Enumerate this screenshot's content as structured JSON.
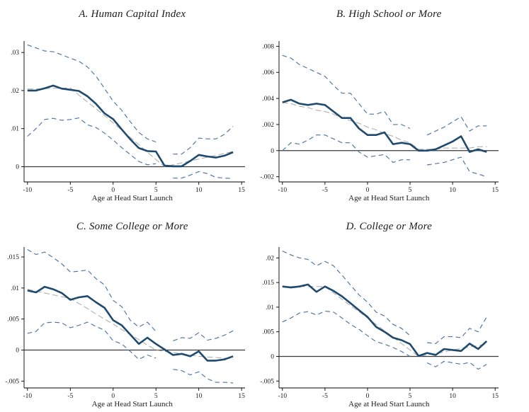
{
  "colors": {
    "main_line": "#1f4a6e",
    "ci_line": "#4d74a3",
    "trend_line": "#a8a8a8",
    "zero_line": "#3a3a3a",
    "axis": "#000000",
    "text": "#1c1c1c",
    "background": "#ffffff"
  },
  "chart_data": [
    {
      "id": "A",
      "type": "line",
      "title": "A. Human Capital Index",
      "xlabel": "Age at Head Start Launch",
      "legend": "none",
      "grid": false,
      "zero_line": true,
      "x": [
        -10,
        -9,
        -8,
        -7,
        -6,
        -5,
        -4,
        -3,
        -2,
        -1,
        0,
        1,
        2,
        3,
        4,
        5,
        6,
        7,
        8,
        9,
        10,
        11,
        12,
        13,
        14
      ],
      "xlim": [
        -10.4,
        15.4
      ],
      "xticks": [
        -10,
        -5,
        0,
        5,
        10,
        15
      ],
      "xtick_labels": [
        "-10",
        "-5",
        "0",
        "5",
        "10",
        "15"
      ],
      "ylim": [
        -0.004,
        0.033
      ],
      "yticks": [
        0,
        0.01,
        0.02,
        0.03
      ],
      "ytick_labels": [
        "0",
        ".01",
        ".02",
        ".03"
      ],
      "series": [
        {
          "name": "linear-trend",
          "role": "trend",
          "values": [
            0.0204,
            0.0204,
            0.0205,
            0.0206,
            0.0206,
            0.0207,
            0.0188,
            0.017,
            0.0152,
            0.0134,
            0.0115,
            0.0096,
            0.0077,
            0.0058,
            0.0038,
            0.0019,
            0.0,
            0.0005,
            0.001,
            0.0015,
            0.002,
            0.0025,
            0.003,
            0.0035,
            0.004
          ]
        },
        {
          "name": "ci-upper",
          "role": "ci",
          "values": [
            0.032,
            0.0312,
            0.0304,
            0.0302,
            0.0294,
            0.0285,
            0.0277,
            0.0262,
            0.0238,
            0.0205,
            0.0172,
            0.0148,
            0.0118,
            0.009,
            0.0073,
            0.0065,
            null,
            0.0033,
            0.0033,
            0.005,
            0.0075,
            0.0073,
            0.0073,
            0.0085,
            0.0106
          ]
        },
        {
          "name": "ci-lower",
          "role": "ci",
          "values": [
            0.008,
            0.01,
            0.0124,
            0.0127,
            0.0122,
            0.0124,
            0.0128,
            0.011,
            0.0103,
            0.0088,
            0.007,
            0.005,
            0.0032,
            0.0014,
            0.0005,
            0.0008,
            null,
            -0.003,
            -0.003,
            -0.0022,
            -0.0013,
            -0.0018,
            -0.0028,
            -0.003,
            -0.0031
          ]
        },
        {
          "name": "point-estimate",
          "role": "main",
          "values": [
            0.02,
            0.02,
            0.0206,
            0.0213,
            0.0205,
            0.0202,
            0.0199,
            0.0185,
            0.0165,
            0.014,
            0.0125,
            0.0098,
            0.0072,
            0.0049,
            0.0041,
            0.004,
            0.0003,
            0.0001,
            0.0001,
            0.0015,
            0.0031,
            0.0027,
            0.0024,
            0.0029,
            0.0038
          ]
        }
      ]
    },
    {
      "id": "B",
      "type": "line",
      "title": "B. High School or More",
      "xlabel": "Age at Head Start Launch",
      "legend": "none",
      "grid": false,
      "zero_line": true,
      "x": [
        -10,
        -9,
        -8,
        -7,
        -6,
        -5,
        -4,
        -3,
        -2,
        -1,
        0,
        1,
        2,
        3,
        4,
        5,
        6,
        7,
        8,
        9,
        10,
        11,
        12,
        13,
        14
      ],
      "xlim": [
        -10.4,
        15.4
      ],
      "xticks": [
        -10,
        -5,
        0,
        5,
        10,
        15
      ],
      "xtick_labels": [
        "-10",
        "-5",
        "0",
        "5",
        "10",
        "15"
      ],
      "ylim": [
        -0.0024,
        0.0084
      ],
      "yticks": [
        -0.002,
        0,
        0.002,
        0.004,
        0.006,
        0.008
      ],
      "ytick_labels": [
        "-.002",
        "0",
        ".002",
        ".004",
        ".006",
        ".008"
      ],
      "series": [
        {
          "name": "linear-trend",
          "role": "trend",
          "values": [
            0.0037,
            0.0036,
            0.0034,
            0.0033,
            0.0031,
            0.003,
            0.0028,
            0.0025,
            0.0023,
            0.0021,
            0.0018,
            0.0016,
            0.0013,
            0.0011,
            0.0008,
            0.0006,
            0.0001,
            0.0001,
            0.0001,
            0.0002,
            0.0002,
            0.0002,
            0.0002,
            0.0003,
            0.0003
          ]
        },
        {
          "name": "ci-upper",
          "role": "ci",
          "values": [
            0.0073,
            0.0071,
            0.0066,
            0.0063,
            0.006,
            0.0057,
            0.005,
            0.0044,
            0.0044,
            0.0036,
            0.0028,
            0.0028,
            0.003,
            0.002,
            0.002,
            0.0017,
            null,
            0.0012,
            0.0015,
            0.0018,
            0.0022,
            0.0026,
            0.0015,
            0.0019,
            0.0019
          ]
        },
        {
          "name": "ci-lower",
          "role": "ci",
          "values": [
            0.0,
            0.0006,
            0.0005,
            0.0008,
            0.0012,
            0.0012,
            0.0009,
            0.0006,
            0.0006,
            -0.0001,
            -0.0005,
            -0.0004,
            -0.0003,
            -0.0009,
            -0.0007,
            -0.0007,
            null,
            -0.0011,
            -0.001,
            -0.0009,
            -0.0007,
            -0.0005,
            -0.0016,
            -0.0018,
            -0.002
          ]
        },
        {
          "name": "point-estimate",
          "role": "main",
          "values": [
            0.0037,
            0.0039,
            0.0036,
            0.0035,
            0.0036,
            0.0035,
            0.003,
            0.0025,
            0.0025,
            0.0017,
            0.0012,
            0.0012,
            0.0014,
            0.0005,
            0.0006,
            0.0005,
            0.0,
            0.0,
            0.0001,
            0.0004,
            0.0007,
            0.0011,
            -0.0001,
            0.0001,
            -0.0001
          ]
        }
      ]
    },
    {
      "id": "C",
      "type": "line",
      "title": "C. Some College or More",
      "xlabel": "Age at Head Start Launch",
      "legend": "none",
      "grid": false,
      "zero_line": true,
      "x": [
        -10,
        -9,
        -8,
        -7,
        -6,
        -5,
        -4,
        -3,
        -2,
        -1,
        0,
        1,
        2,
        3,
        4,
        5,
        6,
        7,
        8,
        9,
        10,
        11,
        12,
        13,
        14
      ],
      "xlim": [
        -10.4,
        15.4
      ],
      "xticks": [
        -10,
        -5,
        0,
        5,
        10,
        15
      ],
      "xtick_labels": [
        "-10",
        "-5",
        "0",
        "5",
        "10",
        "15"
      ],
      "ylim": [
        -0.0061,
        0.0166
      ],
      "yticks": [
        -0.005,
        0,
        0.005,
        0.01,
        0.015
      ],
      "ytick_labels": [
        "-.005",
        "0",
        ".005",
        ".01",
        ".015"
      ],
      "series": [
        {
          "name": "linear-trend",
          "role": "trend",
          "values": [
            0.0098,
            0.0095,
            0.0092,
            0.0089,
            0.0086,
            0.0083,
            0.0075,
            0.0067,
            0.0058,
            0.005,
            0.0042,
            0.0033,
            0.0025,
            0.0017,
            0.0008,
            0.0,
            -0.0002,
            -0.0004,
            -0.0006,
            -0.0008,
            -0.001,
            -0.0011,
            -0.0012,
            -0.0013,
            -0.0014
          ]
        },
        {
          "name": "ci-upper",
          "role": "ci",
          "values": [
            0.0162,
            0.0154,
            0.0158,
            0.0149,
            0.0139,
            0.0126,
            0.0127,
            0.0129,
            0.0115,
            0.0105,
            0.008,
            0.007,
            0.0048,
            0.0037,
            0.0045,
            0.003,
            null,
            0.0015,
            0.002,
            0.0019,
            0.0028,
            0.0016,
            0.0019,
            0.0024,
            0.0031
          ]
        },
        {
          "name": "ci-lower",
          "role": "ci",
          "values": [
            0.0027,
            0.003,
            0.0044,
            0.0045,
            0.0044,
            0.0036,
            0.004,
            0.0045,
            0.0038,
            0.0032,
            0.0015,
            0.001,
            -0.0002,
            -0.0015,
            -0.0008,
            -0.0013,
            null,
            -0.0031,
            -0.0033,
            -0.004,
            -0.0035,
            -0.0046,
            -0.0052,
            -0.0052,
            -0.0053
          ]
        },
        {
          "name": "point-estimate",
          "role": "main",
          "values": [
            0.0096,
            0.0093,
            0.0102,
            0.0098,
            0.0092,
            0.0081,
            0.0085,
            0.0087,
            0.0077,
            0.0068,
            0.0048,
            0.004,
            0.0025,
            0.001,
            0.002,
            0.001,
            0.0001,
            -0.0008,
            -0.0006,
            -0.001,
            -0.0002,
            -0.0017,
            -0.0017,
            -0.0015,
            -0.001
          ]
        }
      ]
    },
    {
      "id": "D",
      "type": "line",
      "title": "D. College or More",
      "xlabel": "Age at Head Start Launch",
      "legend": "none",
      "grid": false,
      "zero_line": true,
      "x": [
        -10,
        -9,
        -8,
        -7,
        -6,
        -5,
        -4,
        -3,
        -2,
        -1,
        0,
        1,
        2,
        3,
        4,
        5,
        6,
        7,
        8,
        9,
        10,
        11,
        12,
        13,
        14
      ],
      "xlim": [
        -10.4,
        15.4
      ],
      "xticks": [
        -10,
        -5,
        0,
        5,
        10,
        15
      ],
      "xtick_labels": [
        "-10",
        "-5",
        "0",
        "5",
        "10",
        "15"
      ],
      "ylim": [
        -0.0064,
        0.0222
      ],
      "yticks": [
        -0.005,
        0,
        0.005,
        0.01,
        0.015,
        0.02
      ],
      "ytick_labels": [
        "-.005",
        "0",
        ".005",
        ".01",
        ".015",
        ".02"
      ],
      "series": [
        {
          "name": "linear-trend",
          "role": "trend",
          "values": [
            0.0142,
            0.0142,
            0.0142,
            0.0142,
            0.0142,
            0.0142,
            0.0129,
            0.0116,
            0.0103,
            0.0091,
            0.0078,
            0.0065,
            0.0052,
            0.0039,
            0.0026,
            0.0013,
            0.0,
            0.0003,
            0.0006,
            0.0009,
            0.0013,
            0.0016,
            0.0019,
            0.0022,
            0.0025
          ]
        },
        {
          "name": "ci-upper",
          "role": "ci",
          "values": [
            0.0214,
            0.0206,
            0.02,
            0.0197,
            0.0184,
            0.0193,
            0.0184,
            0.0165,
            0.0145,
            0.0125,
            0.011,
            0.009,
            0.0082,
            0.0065,
            0.0057,
            0.0042,
            null,
            0.0028,
            0.0026,
            0.004,
            0.004,
            0.0038,
            0.0057,
            0.005,
            0.008
          ]
        },
        {
          "name": "ci-lower",
          "role": "ci",
          "values": [
            0.007,
            0.0078,
            0.0088,
            0.0091,
            0.0084,
            0.0092,
            0.009,
            0.0078,
            0.0065,
            0.0055,
            0.0042,
            0.003,
            0.0025,
            0.0018,
            0.001,
            0.0,
            null,
            -0.0013,
            -0.0021,
            -0.001,
            -0.0013,
            -0.0016,
            -0.0012,
            -0.0026,
            -0.0016
          ]
        },
        {
          "name": "point-estimate",
          "role": "main",
          "values": [
            0.0142,
            0.014,
            0.0142,
            0.0146,
            0.0131,
            0.0142,
            0.0133,
            0.0122,
            0.0108,
            0.0094,
            0.008,
            0.006,
            0.005,
            0.0038,
            0.0033,
            0.0025,
            0.0001,
            0.0007,
            0.0003,
            0.0015,
            0.0013,
            0.0011,
            0.0026,
            0.0015,
            0.0031
          ]
        }
      ]
    }
  ]
}
